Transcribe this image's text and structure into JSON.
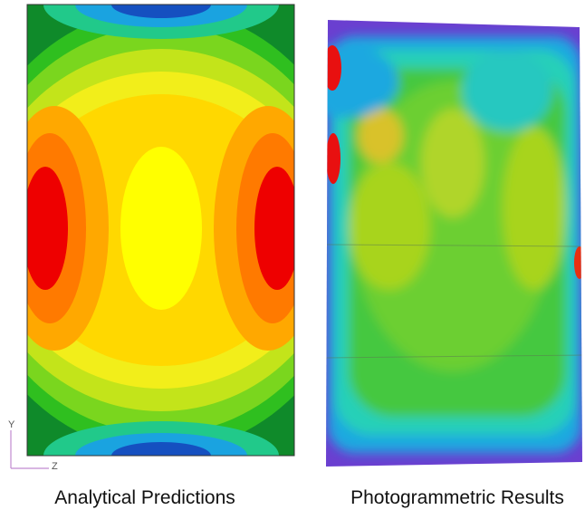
{
  "panels": [
    {
      "caption": "Analytical Predictions"
    },
    {
      "caption": "Photogrammetric Results"
    }
  ],
  "axes": {
    "vertical": "Y",
    "horizontal": "Z"
  }
}
